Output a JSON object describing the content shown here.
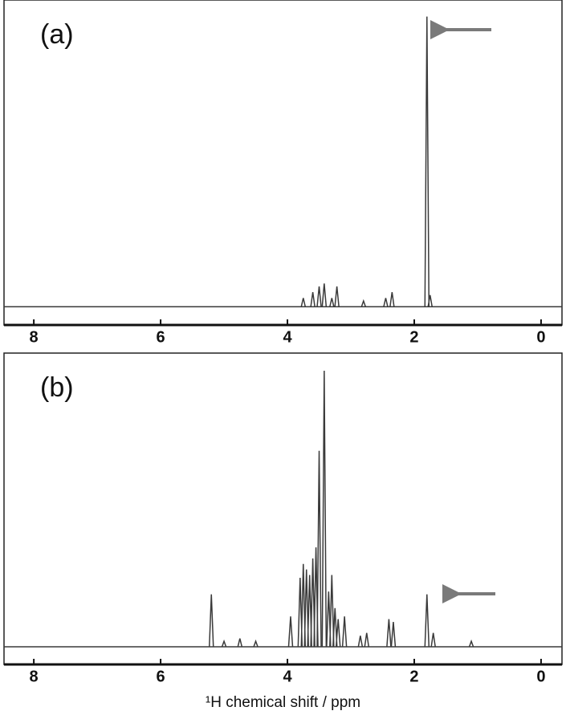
{
  "chart_data": [
    {
      "type": "spectrum",
      "annotation": "(a)",
      "color": "#3a3a3a",
      "x": [
        3.75,
        3.6,
        3.5,
        3.42,
        3.3,
        3.22,
        2.8,
        2.45,
        2.35,
        1.8,
        1.75
      ],
      "values": [
        3,
        5,
        7,
        8,
        3,
        7,
        2,
        3,
        5,
        100,
        4
      ],
      "xlim": [
        8.47,
        -0.33
      ],
      "xticks": [
        8,
        6,
        4,
        2,
        0
      ],
      "ylim": [
        -6.3,
        105.7
      ]
    },
    {
      "type": "spectrum",
      "annotation": "(b)",
      "color": "#3a3a3a",
      "x_label": "¹H chemical shift / ppm",
      "x": [
        5.2,
        5.0,
        4.75,
        4.5,
        3.95,
        3.8,
        3.75,
        3.7,
        3.65,
        3.6,
        3.55,
        3.5,
        3.42,
        3.35,
        3.3,
        3.25,
        3.2,
        3.1,
        2.85,
        2.75,
        2.4,
        2.33,
        1.8,
        1.7,
        1.1
      ],
      "values": [
        19,
        2,
        3,
        2,
        11,
        25,
        30,
        28,
        26,
        32,
        36,
        71,
        100,
        20,
        26,
        14,
        10,
        11,
        4,
        5,
        10,
        9,
        19,
        5,
        2
      ],
      "xlim": [
        8.47,
        -0.33
      ],
      "xticks": [
        8,
        6,
        4,
        2,
        0
      ],
      "ylim": [
        -6.4,
        106.4
      ]
    }
  ]
}
